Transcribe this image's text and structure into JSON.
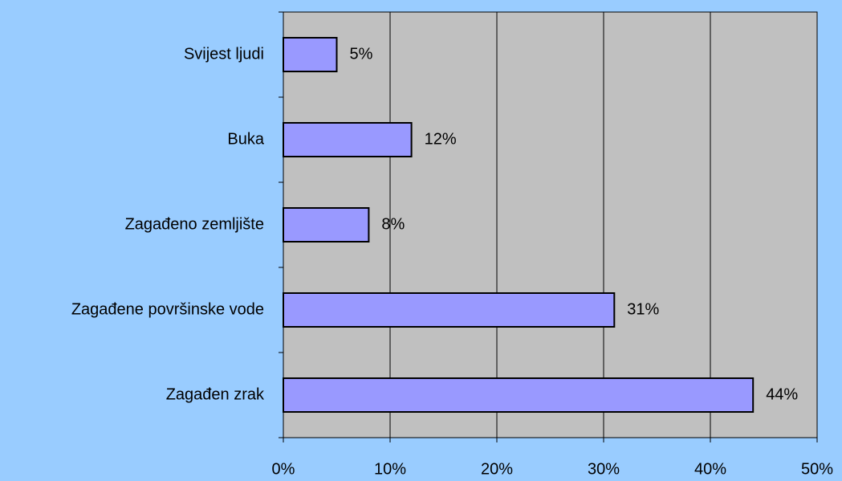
{
  "chart_data": {
    "type": "bar",
    "orientation": "horizontal",
    "categories": [
      "Svijest ljudi",
      "Buka",
      "Zagađeno zemljište",
      "Zagađene površinske vode",
      "Zagađen zrak"
    ],
    "values": [
      5,
      12,
      8,
      31,
      44
    ],
    "value_labels": [
      "5%",
      "12%",
      "8%",
      "31%",
      "44%"
    ],
    "color": "#9999ff",
    "xlim": [
      0,
      50
    ],
    "xticks": [
      {
        "value": 0,
        "label": "0%"
      },
      {
        "value": 10,
        "label": "10%"
      },
      {
        "value": 20,
        "label": "20%"
      },
      {
        "value": 30,
        "label": "30%"
      },
      {
        "value": 40,
        "label": "40%"
      },
      {
        "value": 50,
        "label": "50%"
      }
    ],
    "grid": true
  }
}
